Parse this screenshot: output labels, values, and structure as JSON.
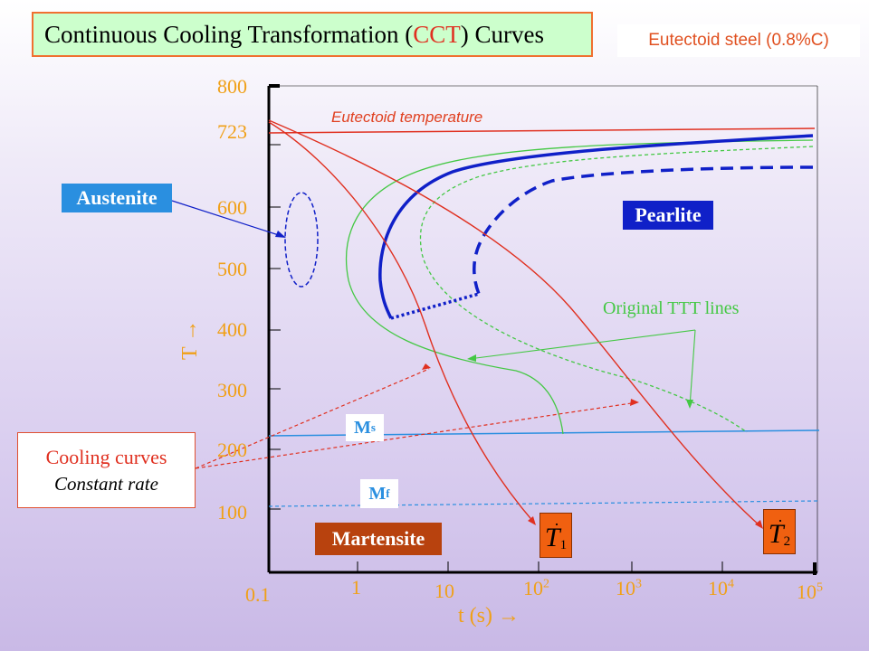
{
  "title": {
    "prefix": "Continuous Cooling Transformation (",
    "cct": "CCT",
    "suffix": ") Curves"
  },
  "steel_note": "Eutectoid steel (0.8%C)",
  "labels": {
    "austenite": "Austenite",
    "pearlite": "Pearlite",
    "martensite": "Martensite",
    "ms": "M",
    "ms_sub": "s",
    "mf": "M",
    "mf_sub": "f",
    "eutectoid": "Eutectoid temperature",
    "original_ttt": "Original TTT lines",
    "t_axis": "T →",
    "time_axis": "t  (s)  →"
  },
  "cooling_box": {
    "title": "Cooling curves",
    "subtitle": "Constant rate"
  },
  "rates": [
    {
      "symbol": "T",
      "sub": "1"
    },
    {
      "symbol": "T",
      "sub": "2"
    }
  ],
  "y_ticks": [
    "800",
    "723",
    "600",
    "500",
    "400",
    "300",
    "200",
    "100"
  ],
  "x_ticks": [
    {
      "base": "0.1",
      "exp": ""
    },
    {
      "base": "1",
      "exp": ""
    },
    {
      "base": "10",
      "exp": ""
    },
    {
      "base": "10",
      "exp": "2"
    },
    {
      "base": "10",
      "exp": "3"
    },
    {
      "base": "10",
      "exp": "4"
    },
    {
      "base": "10",
      "exp": "5"
    }
  ],
  "colors": {
    "axis": "#000000",
    "cooling": "#e03020",
    "ttt": "#44c844",
    "cct": "#1020c8",
    "ms_line": "#2a8fe0",
    "tick_text": "#f0a018"
  }
}
